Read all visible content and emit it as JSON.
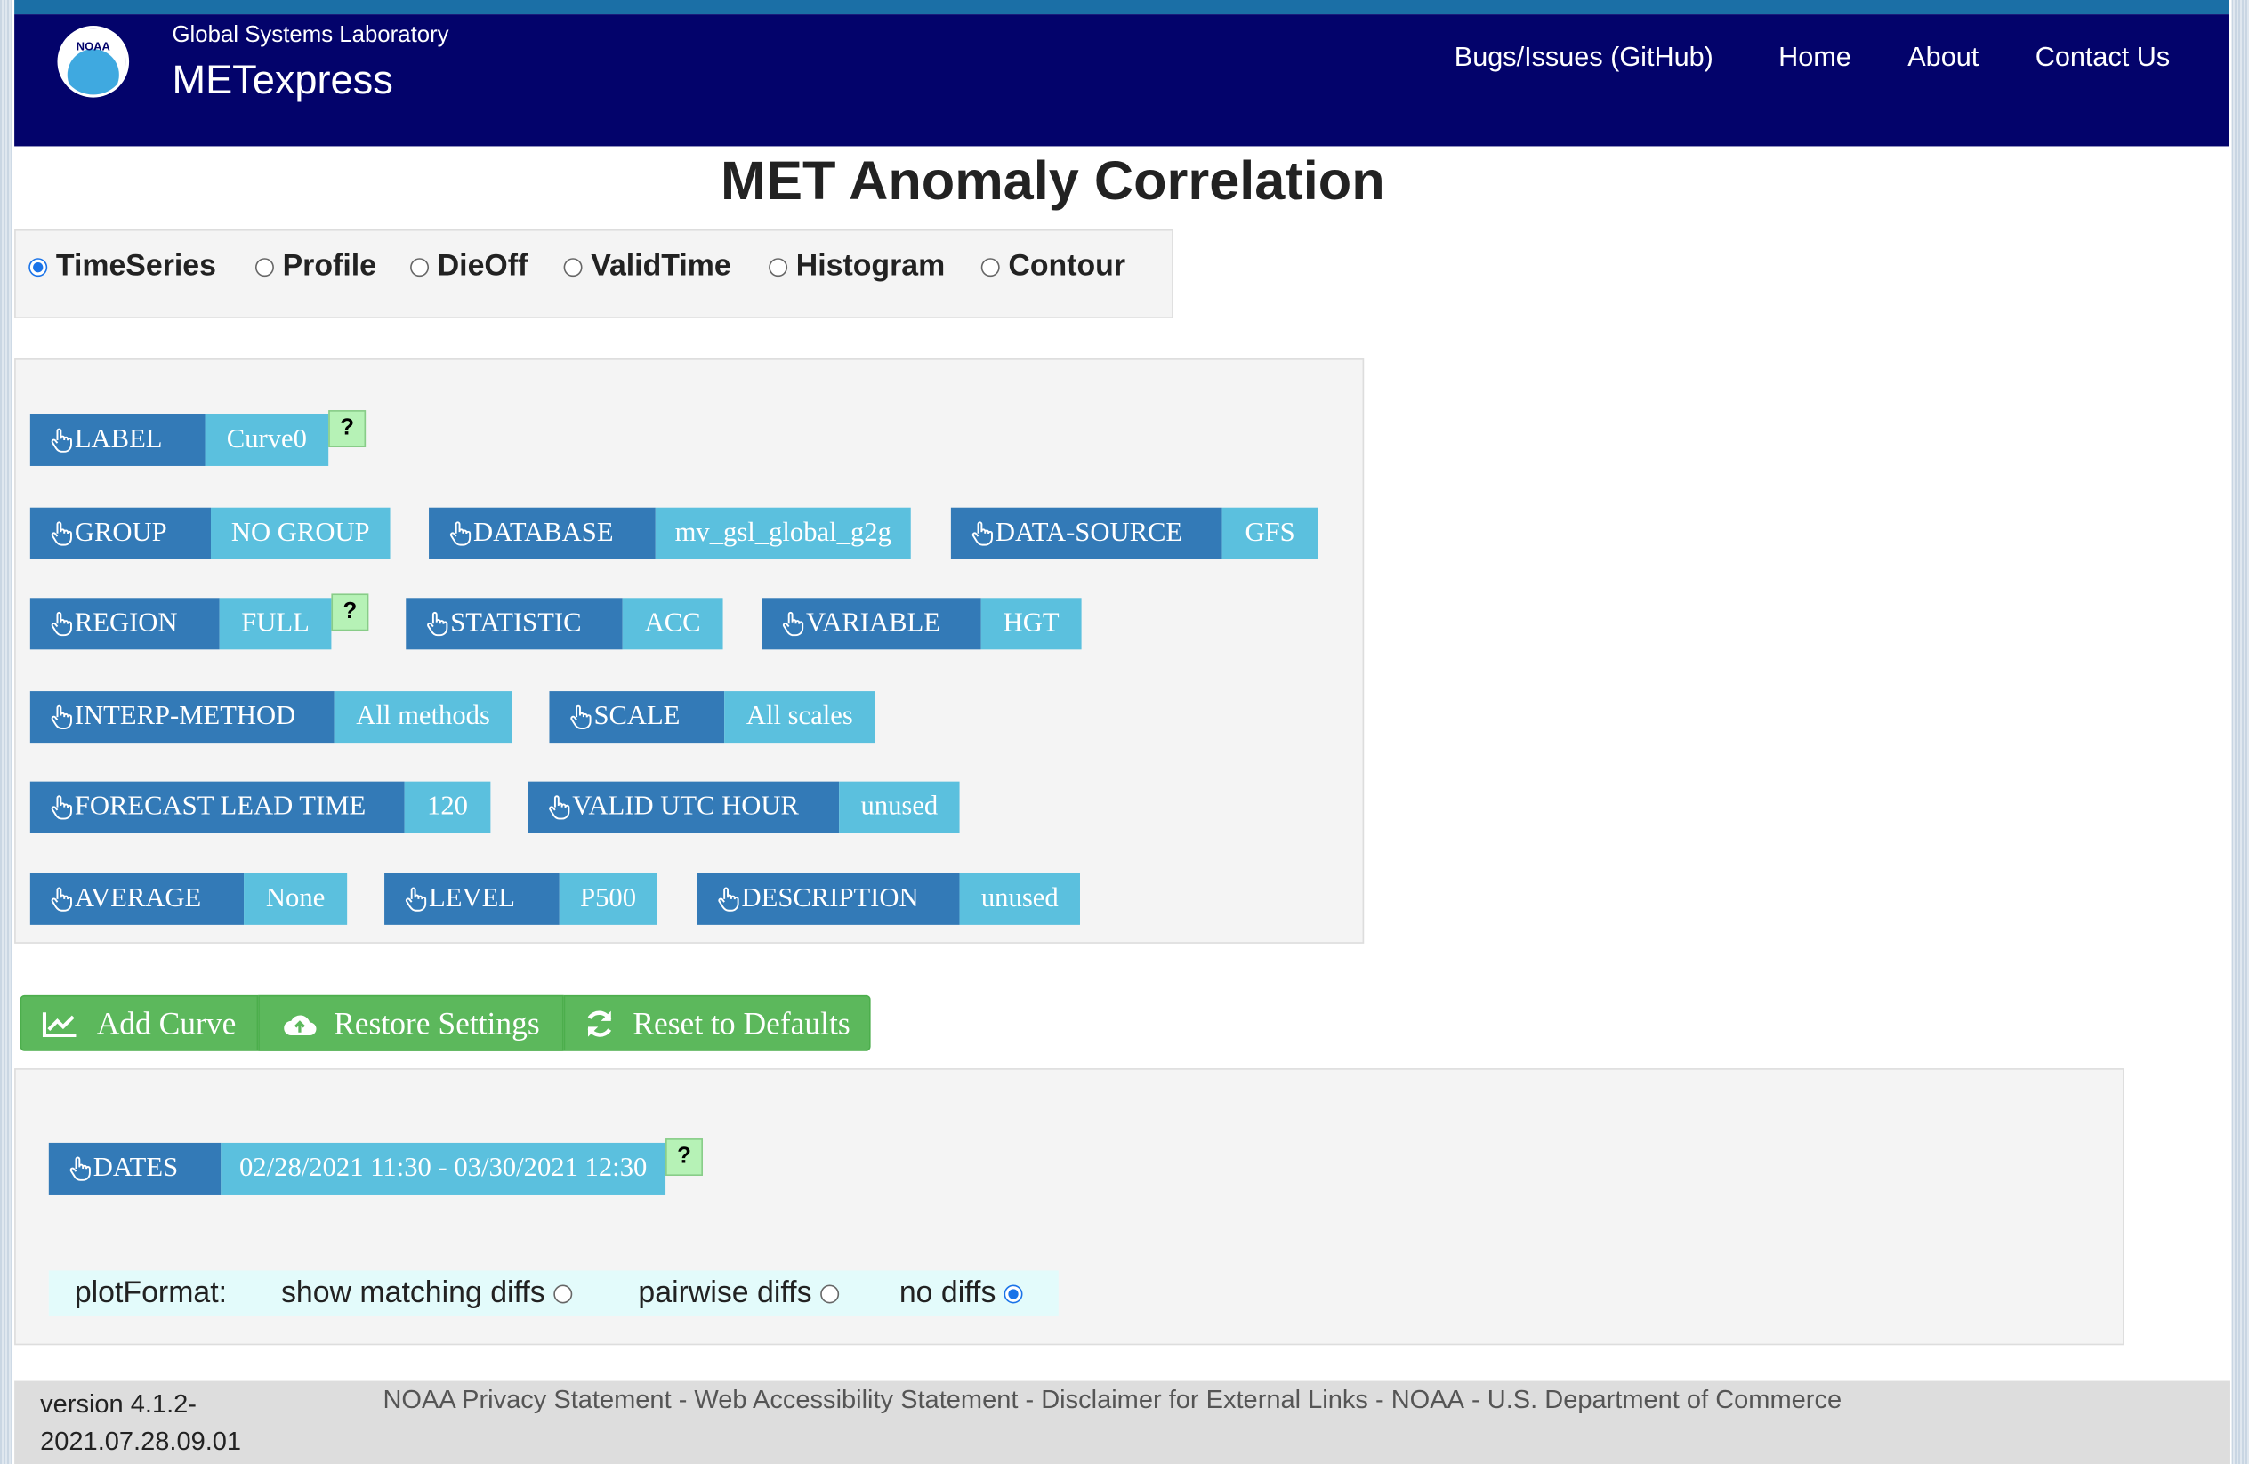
{
  "header": {
    "org": "Global Systems Laboratory",
    "app": "METexpress",
    "logo_text": "NOAA",
    "nav": [
      "Bugs/Issues (GitHub)",
      "Home",
      "About",
      "Contact Us"
    ]
  },
  "title": "MET Anomaly Correlation",
  "plot_types": {
    "options": [
      "TimeSeries",
      "Profile",
      "DieOff",
      "ValidTime",
      "Histogram",
      "Contour"
    ],
    "selected": 0
  },
  "selectors": [
    {
      "label": "LABEL",
      "value": "Curve0",
      "help": "?"
    },
    {
      "label": "GROUP",
      "value": "NO GROUP"
    },
    {
      "label": "DATABASE",
      "value": "mv_gsl_global_g2g"
    },
    {
      "label": "DATA-SOURCE",
      "value": "GFS"
    },
    {
      "label": "REGION",
      "value": "FULL",
      "help": "?"
    },
    {
      "label": "STATISTIC",
      "value": "ACC"
    },
    {
      "label": "VARIABLE",
      "value": "HGT"
    },
    {
      "label": "INTERP-METHOD",
      "value": "All methods"
    },
    {
      "label": "SCALE",
      "value": "All scales"
    },
    {
      "label": "FORECAST LEAD TIME",
      "value": "120"
    },
    {
      "label": "VALID UTC HOUR",
      "value": "unused"
    },
    {
      "label": "AVERAGE",
      "value": "None"
    },
    {
      "label": "LEVEL",
      "value": "P500"
    },
    {
      "label": "DESCRIPTION",
      "value": "unused"
    }
  ],
  "buttons": [
    "Add Curve",
    "Restore Settings",
    "Reset to Defaults"
  ],
  "dates": {
    "label": "DATES",
    "value": "02/28/2021 11:30 - 03/30/2021 12:30",
    "help": "?"
  },
  "plot_format": {
    "label": "plotFormat:",
    "options": [
      "show matching diffs",
      "pairwise diffs",
      "no diffs"
    ],
    "selected": 2
  },
  "footer": {
    "version": "version 4.1.2-2021.07.28.09.01",
    "links": [
      "NOAA Privacy Statement",
      "Web Accessibility Statement",
      "Disclaimer for External Links",
      "NOAA",
      "U.S. Department of Commerce"
    ],
    "separator": "-"
  }
}
